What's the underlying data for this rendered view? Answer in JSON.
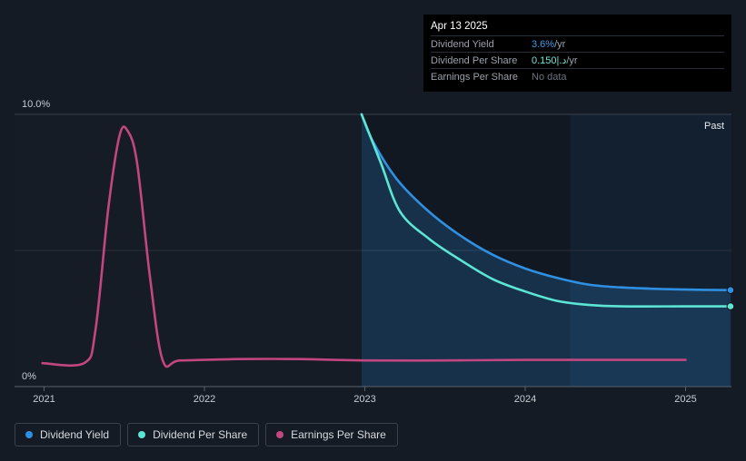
{
  "tooltip": {
    "date": "Apr 13 2025",
    "rows": [
      {
        "label": "Dividend Yield",
        "value": "3.6%",
        "unit": " /yr"
      },
      {
        "label": "Dividend Per Share",
        "value": "0.150|.د",
        "unit": " /yr"
      },
      {
        "label": "Earnings Per Share",
        "value": "No data",
        "unit": ""
      }
    ]
  },
  "legend": [
    {
      "label": "Dividend Yield",
      "color": "#2f8fe0"
    },
    {
      "label": "Dividend Per Share",
      "color": "#5ce5d5"
    },
    {
      "label": "Earnings Per Share",
      "color": "#c2467f"
    }
  ],
  "chart_data": {
    "type": "line",
    "y_tick_labels": [
      "10.0%",
      "0%"
    ],
    "ylim": [
      0,
      10
    ],
    "x_ticks": [
      {
        "label": "2021",
        "value": 2021.0
      },
      {
        "label": "2022",
        "value": 2022.0
      },
      {
        "label": "2023",
        "value": 2023.0
      },
      {
        "label": "2024",
        "value": 2024.0
      },
      {
        "label": "2025",
        "value": 2025.0
      }
    ],
    "xlim": [
      2020.82,
      2025.28
    ],
    "past_label": "Past",
    "forecast_start": 2024.28,
    "shaded_from": 2022.98,
    "series": [
      {
        "name": "Dividend Yield",
        "color": "#2f8fe0",
        "points": [
          [
            2022.98,
            10.0
          ],
          [
            2023.05,
            9.0
          ],
          [
            2023.2,
            7.6
          ],
          [
            2023.4,
            6.4
          ],
          [
            2023.6,
            5.5
          ],
          [
            2023.8,
            4.8
          ],
          [
            2024.0,
            4.3
          ],
          [
            2024.2,
            3.95
          ],
          [
            2024.4,
            3.7
          ],
          [
            2024.6,
            3.6
          ],
          [
            2024.8,
            3.55
          ],
          [
            2025.0,
            3.52
          ],
          [
            2025.28,
            3.5
          ]
        ],
        "end_marker": true
      },
      {
        "name": "Dividend Per Share",
        "color": "#5ce5d5",
        "points": [
          [
            2022.98,
            10.0
          ],
          [
            2023.1,
            8.2
          ],
          [
            2023.22,
            6.4
          ],
          [
            2023.4,
            5.4
          ],
          [
            2023.6,
            4.6
          ],
          [
            2023.8,
            3.9
          ],
          [
            2024.0,
            3.45
          ],
          [
            2024.2,
            3.1
          ],
          [
            2024.4,
            2.95
          ],
          [
            2024.6,
            2.9
          ],
          [
            2025.0,
            2.9
          ],
          [
            2025.28,
            2.9
          ]
        ],
        "end_marker": true
      },
      {
        "name": "Earnings Per Share",
        "color": "#c2467f",
        "points": [
          [
            2020.99,
            0.8
          ],
          [
            2021.25,
            0.8
          ],
          [
            2021.32,
            2.0
          ],
          [
            2021.4,
            6.5
          ],
          [
            2021.47,
            9.2
          ],
          [
            2021.52,
            9.4
          ],
          [
            2021.58,
            8.2
          ],
          [
            2021.66,
            4.0
          ],
          [
            2021.74,
            0.9
          ],
          [
            2021.85,
            0.9
          ],
          [
            2022.2,
            0.95
          ],
          [
            2022.6,
            0.95
          ],
          [
            2023.0,
            0.9
          ],
          [
            2023.5,
            0.9
          ],
          [
            2024.0,
            0.92
          ],
          [
            2025.0,
            0.92
          ]
        ],
        "end_marker": false
      }
    ]
  }
}
